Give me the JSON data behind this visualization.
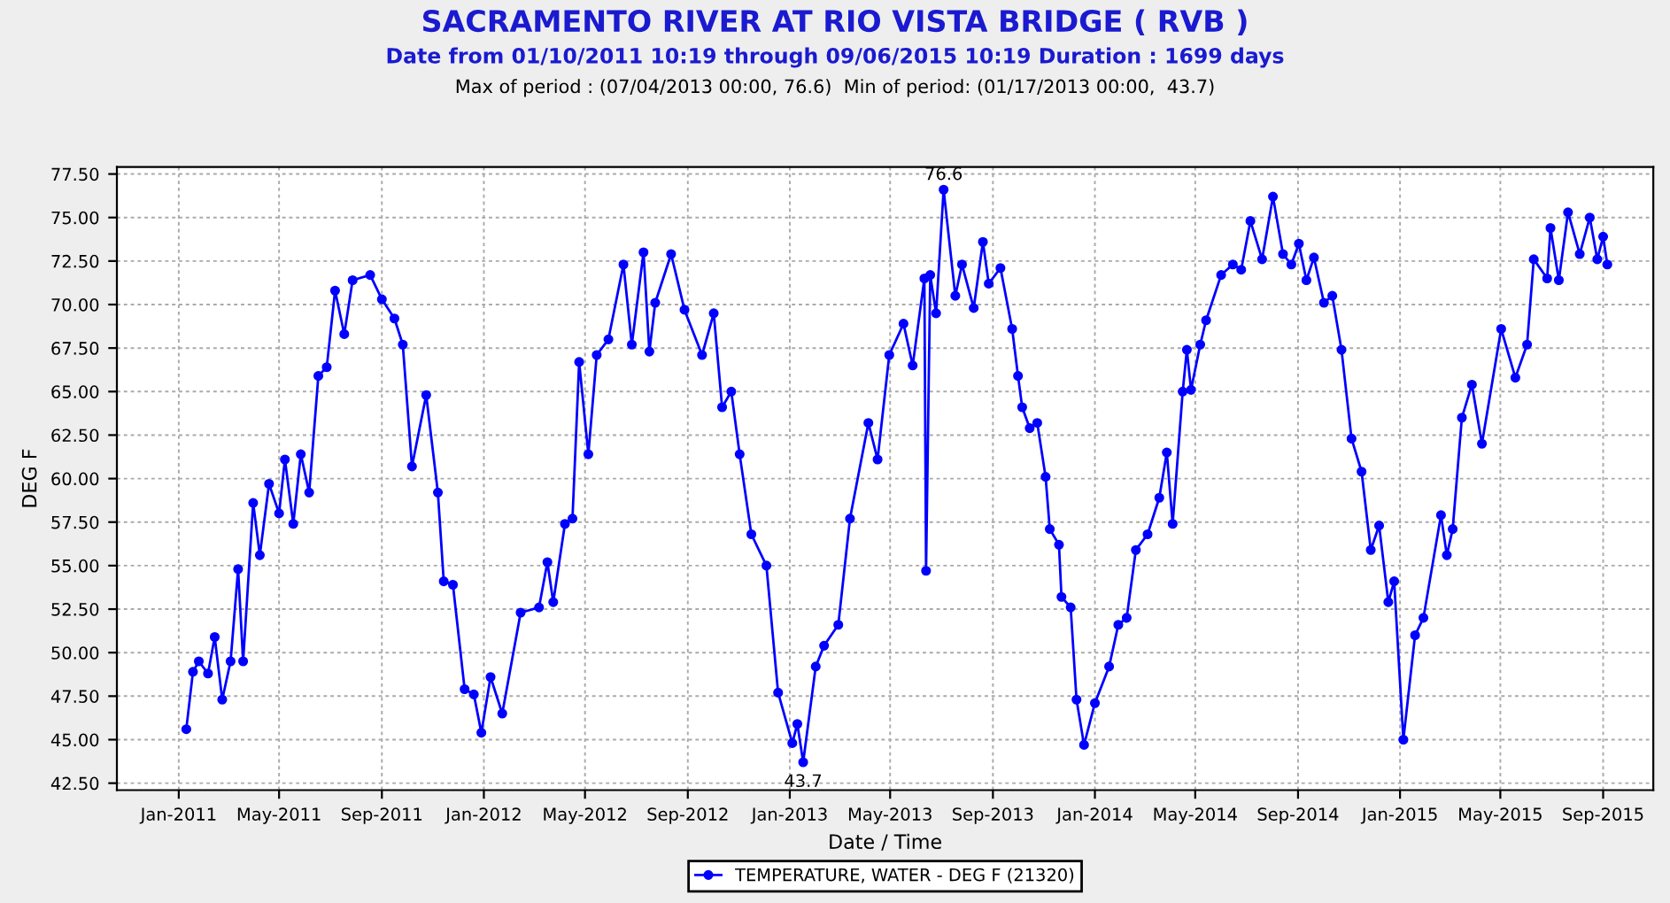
{
  "chart_data": {
    "type": "line",
    "title": "SACRAMENTO RIVER AT RIO VISTA BRIDGE ( RVB )",
    "subtitle": "Date from 01/10/2011 10:19 through 09/06/2015 10:19 Duration : 1699 days",
    "annotations": [
      "Max of period : (07/04/2013 00:00, 76.6)  Min of period: (01/17/2013 00:00,  43.7)",
      {
        "text": "76.6",
        "x": "2013-07-04",
        "y": 76.6
      },
      {
        "text": "43.7",
        "x": "2013-01-17",
        "y": 43.7
      }
    ],
    "xlabel": "Date / Time",
    "ylabel": "DEG F",
    "x": [
      "2011-01-10",
      "2011-01-18",
      "2011-01-25",
      "2011-02-05",
      "2011-02-13",
      "2011-02-22",
      "2011-03-04",
      "2011-03-13",
      "2011-03-19",
      "2011-03-31",
      "2011-04-08",
      "2011-04-19",
      "2011-05-01",
      "2011-05-08",
      "2011-05-18",
      "2011-05-27",
      "2011-06-06",
      "2011-06-17",
      "2011-06-27",
      "2011-07-07",
      "2011-07-18",
      "2011-07-28",
      "2011-08-18",
      "2011-09-01",
      "2011-09-16",
      "2011-09-26",
      "2011-10-07",
      "2011-10-24",
      "2011-11-07",
      "2011-11-14",
      "2011-11-25",
      "2011-12-09",
      "2011-12-20",
      "2011-12-29",
      "2012-01-09",
      "2012-01-23",
      "2012-02-14",
      "2012-03-07",
      "2012-03-17",
      "2012-03-24",
      "2012-04-07",
      "2012-04-16",
      "2012-04-24",
      "2012-05-05",
      "2012-05-15",
      "2012-05-29",
      "2012-06-16",
      "2012-06-26",
      "2012-07-10",
      "2012-07-17",
      "2012-07-24",
      "2012-08-12",
      "2012-08-28",
      "2012-09-18",
      "2012-10-02",
      "2012-10-12",
      "2012-10-23",
      "2012-11-02",
      "2012-11-16",
      "2012-12-04",
      "2012-12-18",
      "2013-01-04",
      "2013-01-10",
      "2013-01-17",
      "2013-02-01",
      "2013-02-11",
      "2013-02-28",
      "2013-03-14",
      "2013-04-05",
      "2013-04-16",
      "2013-04-30",
      "2013-05-17",
      "2013-05-28",
      "2013-06-11",
      "2013-06-13",
      "2013-06-18",
      "2013-06-25",
      "2013-07-04",
      "2013-07-18",
      "2013-07-26",
      "2013-08-09",
      "2013-08-20",
      "2013-08-27",
      "2013-09-10",
      "2013-09-24",
      "2013-10-01",
      "2013-10-06",
      "2013-10-15",
      "2013-10-24",
      "2013-11-03",
      "2013-11-08",
      "2013-11-19",
      "2013-11-22",
      "2013-12-03",
      "2013-12-10",
      "2013-12-19",
      "2014-01-01",
      "2014-01-18",
      "2014-01-29",
      "2014-02-08",
      "2014-02-19",
      "2014-03-05",
      "2014-03-19",
      "2014-03-28",
      "2014-04-04",
      "2014-04-16",
      "2014-04-21",
      "2014-04-26",
      "2014-05-07",
      "2014-05-14",
      "2014-06-01",
      "2014-06-15",
      "2014-06-25",
      "2014-07-06",
      "2014-07-20",
      "2014-08-02",
      "2014-08-14",
      "2014-08-24",
      "2014-09-02",
      "2014-09-11",
      "2014-09-20",
      "2014-10-02",
      "2014-10-12",
      "2014-10-23",
      "2014-11-04",
      "2014-11-16",
      "2014-11-27",
      "2014-12-07",
      "2014-12-18",
      "2014-12-25",
      "2015-01-05",
      "2015-01-19",
      "2015-01-29",
      "2015-02-19",
      "2015-02-26",
      "2015-03-05",
      "2015-03-16",
      "2015-03-28",
      "2015-04-09",
      "2015-05-02",
      "2015-05-19",
      "2015-06-02",
      "2015-06-10",
      "2015-06-26",
      "2015-06-30",
      "2015-07-10",
      "2015-07-21",
      "2015-08-04",
      "2015-08-16",
      "2015-08-25",
      "2015-09-01",
      "2015-09-06"
    ],
    "series": [
      {
        "name": "TEMPERATURE, WATER - DEG F (21320)",
        "color": "#0000ff",
        "values": [
          45.6,
          48.9,
          49.5,
          48.8,
          50.9,
          47.3,
          49.5,
          54.8,
          49.5,
          58.6,
          55.6,
          59.7,
          58.0,
          61.1,
          57.4,
          61.4,
          59.2,
          65.9,
          66.4,
          70.8,
          68.3,
          71.4,
          71.7,
          70.3,
          69.2,
          67.7,
          60.7,
          64.8,
          59.2,
          54.1,
          53.9,
          47.9,
          47.6,
          45.4,
          48.6,
          46.5,
          52.3,
          52.6,
          55.2,
          52.9,
          57.4,
          57.7,
          66.7,
          61.4,
          67.1,
          68.0,
          72.3,
          67.7,
          73.0,
          67.3,
          70.1,
          72.9,
          69.7,
          67.1,
          69.5,
          64.1,
          65.0,
          61.4,
          56.8,
          55.0,
          47.7,
          44.8,
          45.9,
          43.7,
          49.2,
          50.4,
          51.6,
          57.7,
          63.2,
          61.1,
          67.1,
          68.9,
          66.5,
          71.5,
          54.7,
          71.7,
          69.5,
          76.6,
          70.5,
          72.3,
          69.8,
          73.6,
          71.2,
          72.1,
          68.6,
          65.9,
          64.1,
          62.9,
          63.2,
          60.1,
          57.1,
          56.2,
          53.2,
          52.6,
          47.3,
          44.7,
          47.1,
          49.2,
          51.6,
          52.0,
          55.9,
          56.8,
          58.9,
          61.5,
          57.4,
          65.0,
          67.4,
          65.1,
          67.7,
          69.1,
          71.7,
          72.3,
          72.0,
          74.8,
          72.6,
          76.2,
          72.9,
          72.3,
          73.5,
          71.4,
          72.7,
          70.1,
          70.5,
          67.4,
          62.3,
          60.4,
          55.9,
          57.3,
          52.9,
          54.1,
          45.0,
          51.0,
          52.0,
          57.9,
          55.6,
          57.1,
          63.5,
          65.4,
          62.0,
          68.6,
          65.8,
          67.7,
          72.6,
          71.5,
          74.4,
          71.4,
          75.3,
          72.9,
          75.0,
          72.6,
          73.9,
          72.3
        ]
      }
    ],
    "xlim": [
      "2010-10-19",
      "2015-10-31"
    ],
    "xticks": [
      {
        "value": "2011-01-01",
        "label": "Jan-2011"
      },
      {
        "value": "2011-05-01",
        "label": "May-2011"
      },
      {
        "value": "2011-09-01",
        "label": "Sep-2011"
      },
      {
        "value": "2012-01-01",
        "label": "Jan-2012"
      },
      {
        "value": "2012-05-01",
        "label": "May-2012"
      },
      {
        "value": "2012-09-01",
        "label": "Sep-2012"
      },
      {
        "value": "2013-01-01",
        "label": "Jan-2013"
      },
      {
        "value": "2013-05-01",
        "label": "May-2013"
      },
      {
        "value": "2013-09-01",
        "label": "Sep-2013"
      },
      {
        "value": "2014-01-01",
        "label": "Jan-2014"
      },
      {
        "value": "2014-05-01",
        "label": "May-2014"
      },
      {
        "value": "2014-09-01",
        "label": "Sep-2014"
      },
      {
        "value": "2015-01-01",
        "label": "Jan-2015"
      },
      {
        "value": "2015-05-01",
        "label": "May-2015"
      },
      {
        "value": "2015-09-01",
        "label": "Sep-2015"
      }
    ],
    "ylim": [
      42.1,
      77.9
    ],
    "yticks": [
      {
        "value": 42.5,
        "label": "42.50"
      },
      {
        "value": 45,
        "label": "45.00"
      },
      {
        "value": 47.5,
        "label": "47.50"
      },
      {
        "value": 50,
        "label": "50.00"
      },
      {
        "value": 52.5,
        "label": "52.50"
      },
      {
        "value": 55,
        "label": "55.00"
      },
      {
        "value": 57.5,
        "label": "57.50"
      },
      {
        "value": 60,
        "label": "60.00"
      },
      {
        "value": 62.5,
        "label": "62.50"
      },
      {
        "value": 65,
        "label": "65.00"
      },
      {
        "value": 67.5,
        "label": "67.50"
      },
      {
        "value": 70,
        "label": "70.00"
      },
      {
        "value": 72.5,
        "label": "72.50"
      },
      {
        "value": 75,
        "label": "75.00"
      },
      {
        "value": 77.5,
        "label": "77.50"
      }
    ],
    "grid": true,
    "legend": "bottom",
    "marker": "circle",
    "line_style": "solid"
  }
}
